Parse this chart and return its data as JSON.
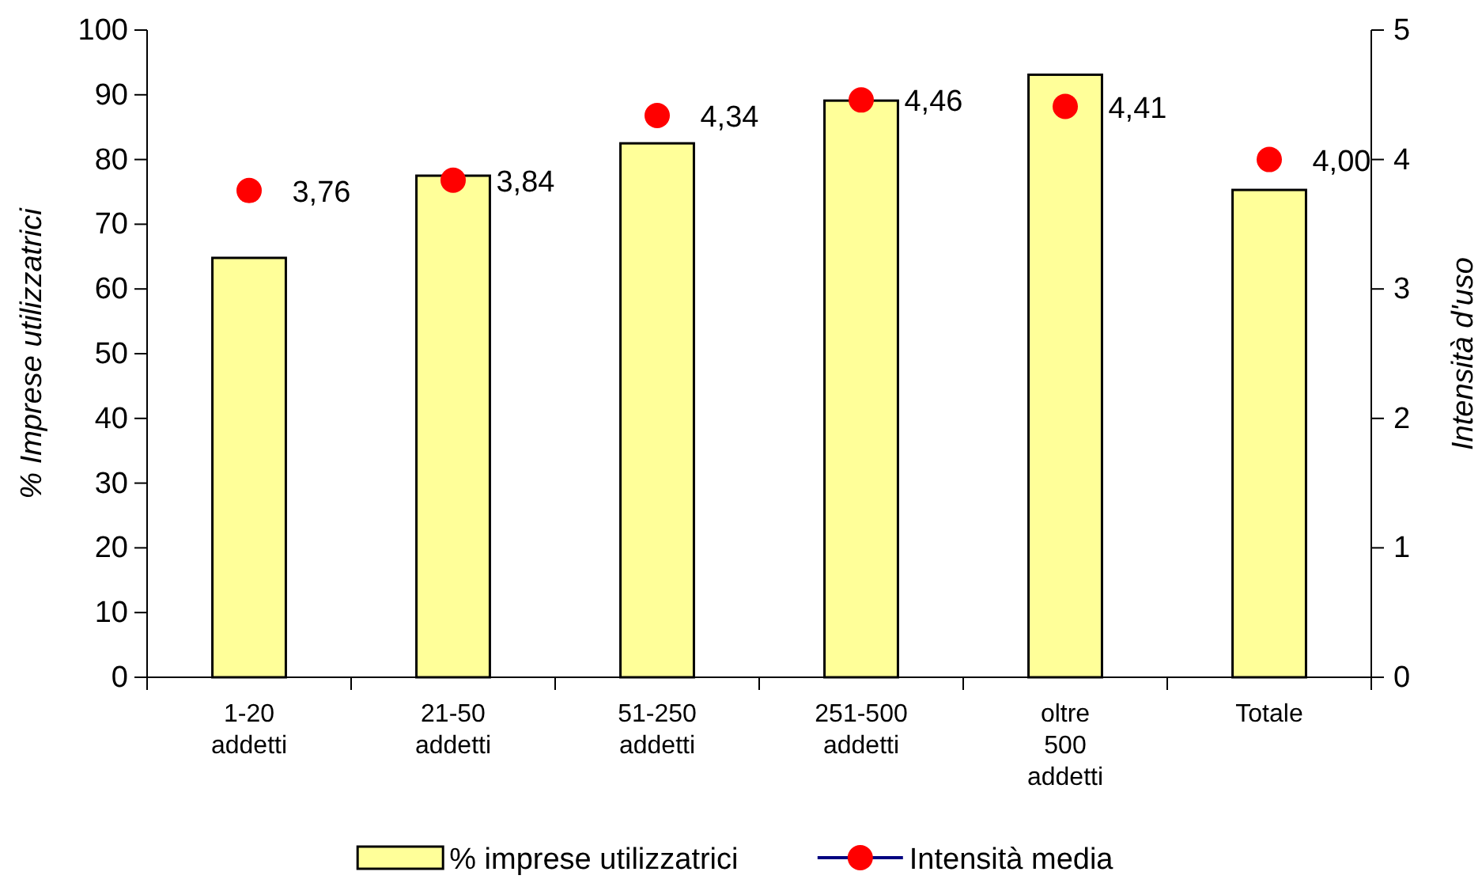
{
  "chart_data": {
    "type": "bar",
    "ylabel": "% Imprese utilizzatrici",
    "y2label": "Intensità d'uso",
    "categories": [
      "1-20 addetti",
      "21-50 addetti",
      "51-250 addetti",
      "251-500 addetti",
      "oltre 500 addetti",
      "Totale"
    ],
    "series": [
      {
        "name": "% imprese utilizzatrici",
        "color": "#ffff99",
        "values": [
          64.8,
          77.5,
          82.5,
          89.1,
          93.1,
          75.3
        ]
      },
      {
        "name": "Intensità media",
        "type": "scatter",
        "axis": "y2",
        "color": "#ff0000",
        "values": [
          3.76,
          3.84,
          4.34,
          4.46,
          4.41,
          4.0
        ],
        "value_labels": [
          "3,76",
          "3,84",
          "4,34",
          "4,46",
          "4,41",
          "4,00"
        ]
      }
    ],
    "ylim": [
      0,
      100
    ],
    "yticks": [
      0,
      10,
      20,
      30,
      40,
      50,
      60,
      70,
      80,
      90,
      100
    ],
    "y2lim": [
      0,
      5
    ],
    "y2ticks": [
      0,
      1,
      2,
      3,
      4,
      5
    ],
    "grid": false,
    "legend": "bottom",
    "marker": "circle"
  }
}
